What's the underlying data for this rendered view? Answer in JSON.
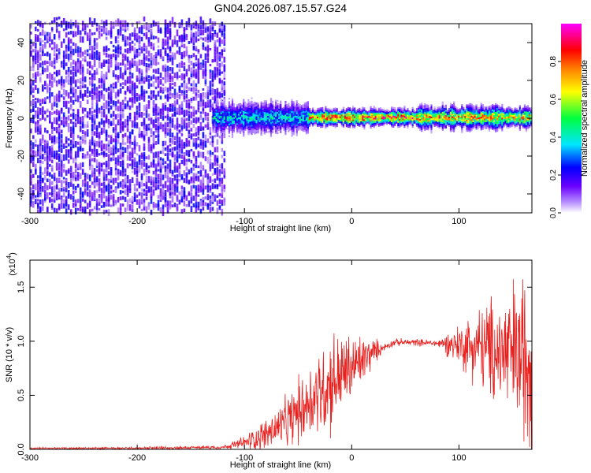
{
  "figure_title": "GN04.2026.087.15.57.G24",
  "chart_data": [
    {
      "type": "heatmap",
      "xlabel": "Height of straight line (km)",
      "ylabel": "Frequency (Hz)",
      "xlim": [
        -300,
        168
      ],
      "ylim": [
        -50,
        50
      ],
      "xticks": [
        -300,
        -200,
        -100,
        0,
        100
      ],
      "yticks": [
        -40,
        -20,
        0,
        20,
        40
      ],
      "colorbar": {
        "label": "Normalized spectral amplitude",
        "range": [
          0,
          1
        ],
        "ticks": [
          0.0,
          0.2,
          0.4,
          0.6,
          0.8
        ],
        "colormap": [
          "#ffffff",
          "#b388ff",
          "#6a00ff",
          "#0000ff",
          "#00e5ff",
          "#00ff40",
          "#ffff00",
          "#ff8000",
          "#ff0000",
          "#ff00ff"
        ]
      },
      "regions": [
        {
          "x": [
            -300,
            -118
          ],
          "freq_spread": [
            -50,
            50
          ],
          "amplitude": [
            0.05,
            0.25
          ],
          "description": "noise"
        },
        {
          "x": [
            -130,
            -40
          ],
          "center_freq": 0,
          "half_width": 6,
          "amplitude": [
            0.2,
            0.5
          ]
        },
        {
          "x": [
            -40,
            60
          ],
          "center_freq": 0,
          "half_width": 3,
          "amplitude": [
            0.5,
            1.0
          ]
        },
        {
          "x": [
            60,
            168
          ],
          "center_freq": 0,
          "half_width": 4,
          "amplitude": [
            0.4,
            0.9
          ]
        }
      ],
      "grid": false
    },
    {
      "type": "line",
      "xlabel": "Height of straight line (km)",
      "ylabel": "SNR (10 * v/v)",
      "y_multiplier": "(x10",
      "y_multiplier_exp": "4",
      "y_multiplier_close": ")",
      "xlim": [
        -300,
        168
      ],
      "ylim": [
        0,
        1.75
      ],
      "xticks": [
        -300,
        -200,
        -100,
        0,
        100
      ],
      "yticks": [
        0.0,
        0.5,
        1.0,
        1.5
      ],
      "series": [
        {
          "color": "#e8201e",
          "points": [
            [
              -300,
              0.01
            ],
            [
              -200,
              0.01
            ],
            [
              -120,
              0.02
            ],
            [
              -100,
              0.06
            ],
            [
              -80,
              0.14
            ],
            [
              -60,
              0.25
            ],
            [
              -40,
              0.45
            ],
            [
              -20,
              0.62
            ],
            [
              0,
              0.75
            ],
            [
              20,
              0.9
            ],
            [
              40,
              0.99
            ],
            [
              60,
              0.99
            ],
            [
              80,
              0.98
            ],
            [
              100,
              0.97
            ],
            [
              120,
              0.95
            ],
            [
              140,
              0.9
            ],
            [
              168,
              0.85
            ]
          ],
          "noise_envelope": [
            [
              -300,
              0.005
            ],
            [
              -120,
              0.01
            ],
            [
              -100,
              0.04
            ],
            [
              -60,
              0.15
            ],
            [
              -20,
              0.3
            ],
            [
              10,
              0.15
            ],
            [
              30,
              0.02
            ],
            [
              80,
              0.02
            ],
            [
              100,
              0.12
            ],
            [
              130,
              0.3
            ],
            [
              168,
              0.55
            ]
          ]
        }
      ],
      "grid": false
    }
  ]
}
